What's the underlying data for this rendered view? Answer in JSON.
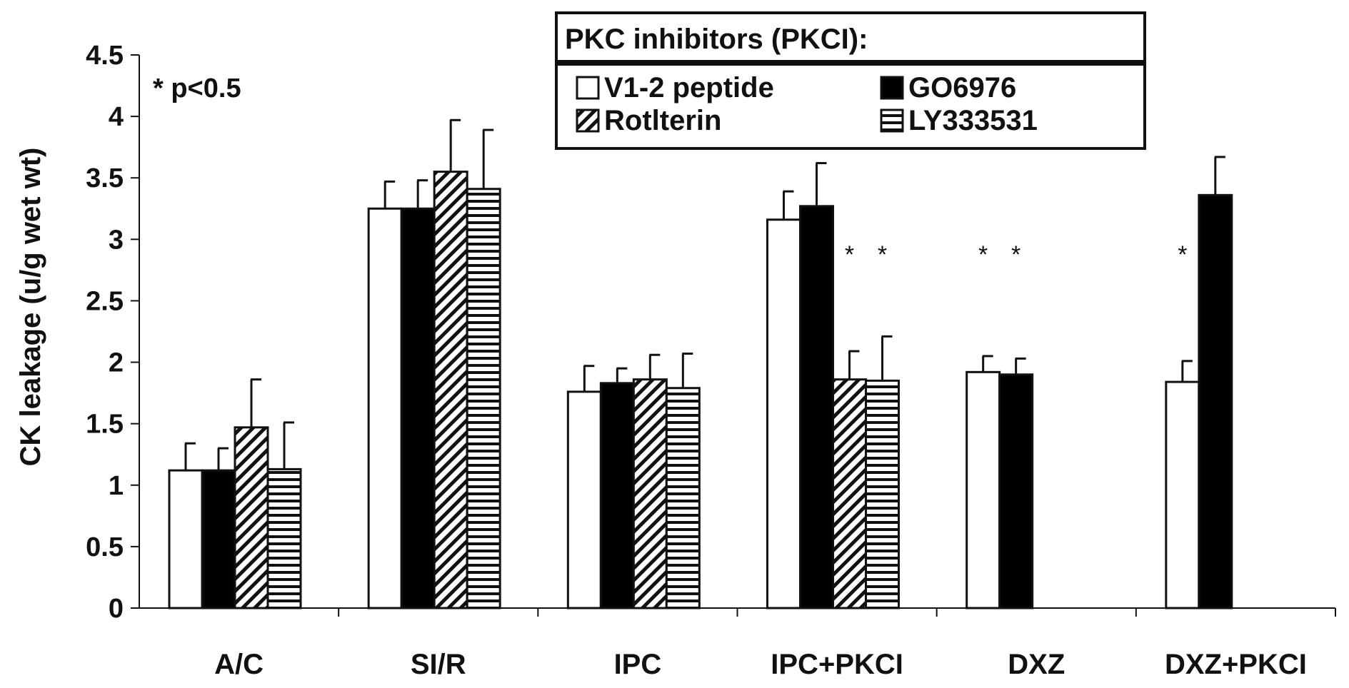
{
  "chart_data": {
    "type": "bar",
    "ylabel": "CK leakage (u/g wet wt)",
    "ylim": [
      0,
      4.5
    ],
    "yticks": [
      "0",
      "0.5",
      "1",
      "1.5",
      "2",
      "2.5",
      "3",
      "3.5",
      "4",
      "4.5"
    ],
    "categories": [
      "A/C",
      "SI/R",
      "IPC",
      "IPC+PKCI",
      "DXZ",
      "DXZ+PKCI"
    ],
    "legend_title": "PKC inhibitors (PKCI):",
    "legend_placement": "top-center",
    "annotation": "* p<0.5",
    "series": [
      {
        "name": "V1-2 peptide",
        "pattern": "white",
        "values": [
          1.12,
          3.25,
          1.76,
          3.16,
          1.92,
          1.84
        ],
        "errors": [
          0.22,
          0.22,
          0.21,
          0.23,
          0.13,
          0.17
        ],
        "stars": [
          false,
          false,
          false,
          false,
          true,
          true
        ]
      },
      {
        "name": "GO6976",
        "pattern": "black",
        "values": [
          1.12,
          3.25,
          1.83,
          3.27,
          1.9,
          3.36
        ],
        "errors": [
          0.18,
          0.23,
          0.12,
          0.35,
          0.13,
          0.31
        ],
        "stars": [
          false,
          false,
          false,
          false,
          true,
          false
        ]
      },
      {
        "name": "Rotlterin",
        "pattern": "diagonal",
        "values": [
          1.47,
          3.55,
          1.86,
          1.86,
          null,
          null
        ],
        "errors": [
          0.39,
          0.42,
          0.2,
          0.23,
          null,
          null
        ],
        "stars": [
          false,
          false,
          false,
          true,
          false,
          false
        ]
      },
      {
        "name": "LY333531",
        "pattern": "horizontal",
        "values": [
          1.13,
          3.41,
          1.79,
          1.85,
          null,
          null
        ],
        "errors": [
          0.38,
          0.48,
          0.28,
          0.36,
          null,
          null
        ],
        "stars": [
          false,
          false,
          false,
          true,
          false,
          false
        ]
      }
    ],
    "colors": {
      "ink": "#111111",
      "fill_white": "#ffffff",
      "fill_black": "#000000"
    }
  }
}
